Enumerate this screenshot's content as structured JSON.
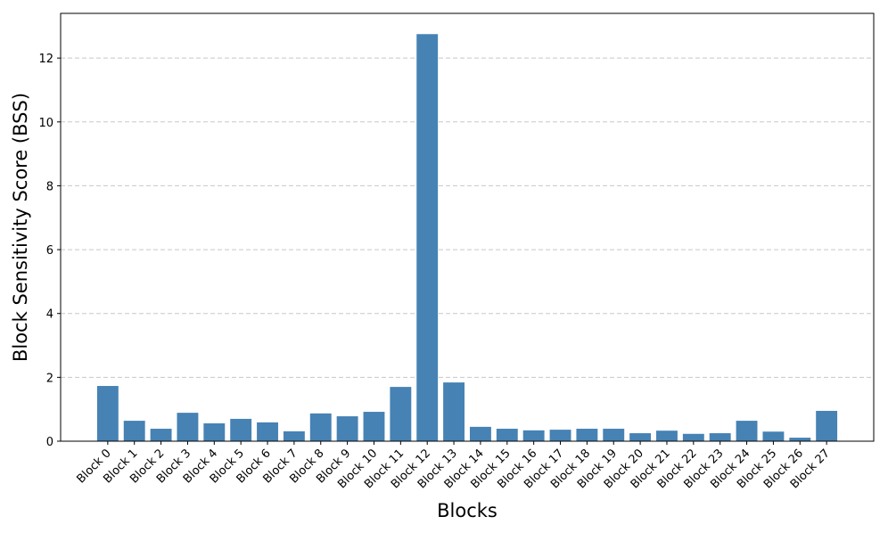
{
  "chart_data": {
    "type": "bar",
    "x_label": "Blocks",
    "y_label": "Block Sensitivity Score (BSS)",
    "categories": [
      "Block 0",
      "Block 1",
      "Block 2",
      "Block 3",
      "Block 4",
      "Block 5",
      "Block 6",
      "Block 7",
      "Block 8",
      "Block 9",
      "Block 10",
      "Block 11",
      "Block 12",
      "Block 13",
      "Block 14",
      "Block 15",
      "Block 16",
      "Block 17",
      "Block 18",
      "Block 19",
      "Block 20",
      "Block 21",
      "Block 22",
      "Block 23",
      "Block 24",
      "Block 25",
      "Block 26",
      "Block 27"
    ],
    "values": [
      1.73,
      0.64,
      0.39,
      0.89,
      0.56,
      0.7,
      0.59,
      0.31,
      0.87,
      0.78,
      0.92,
      1.7,
      12.75,
      1.84,
      0.45,
      0.39,
      0.34,
      0.36,
      0.39,
      0.39,
      0.25,
      0.33,
      0.23,
      0.25,
      0.64,
      0.3,
      0.11,
      0.95
    ],
    "color": "#4682b4",
    "ylim": [
      0,
      13.4
    ],
    "yticks": [
      0,
      2,
      4,
      6,
      8,
      10,
      12
    ],
    "grid": true
  }
}
